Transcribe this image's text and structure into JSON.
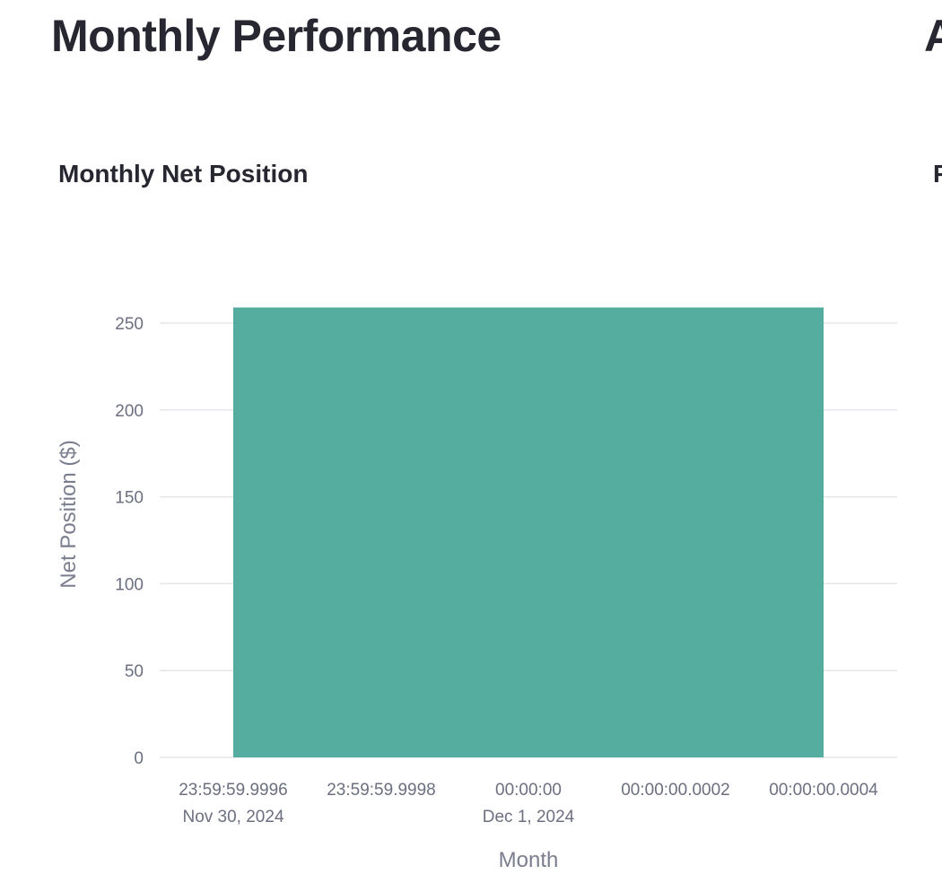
{
  "page": {
    "title": "Monthly Performance",
    "next_title_fragment": "A",
    "next_chart_title_fragment": "P"
  },
  "colors": {
    "bar": "#55ad9f",
    "grid": "#e4e5e9",
    "text": "#262730",
    "tick_text": "#6b6f80"
  },
  "chart_data": {
    "type": "bar",
    "title": "Monthly Net Position",
    "xlabel": "Month",
    "ylabel": "Net Position ($)",
    "categories": [
      "Dec 1, 2024"
    ],
    "values": [
      259
    ],
    "ylim": [
      0,
      265
    ],
    "yticks": [
      0,
      50,
      100,
      150,
      200,
      250
    ],
    "xticks": [
      {
        "time": "23:59:59.9996",
        "date": "Nov 30, 2024"
      },
      {
        "time": "23:59:59.9998",
        "date": ""
      },
      {
        "time": "00:00:00",
        "date": "Dec 1, 2024"
      },
      {
        "time": "00:00:00.0002",
        "date": ""
      },
      {
        "time": "00:00:00.0004",
        "date": ""
      }
    ],
    "grid": true,
    "legend": "none"
  }
}
